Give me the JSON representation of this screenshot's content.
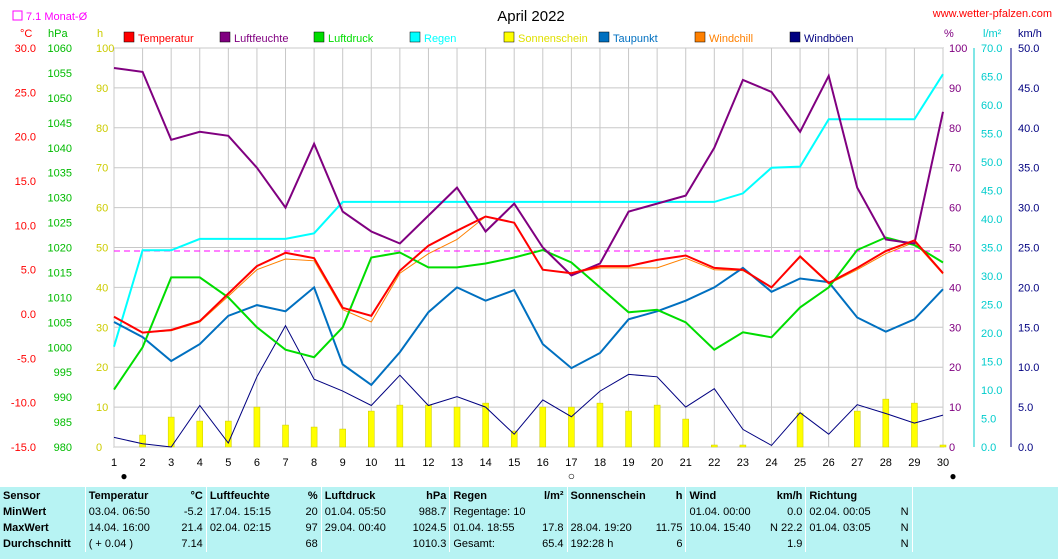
{
  "title": "April 2022",
  "site": "www.wetter-pfalzen.com",
  "monthly_avg_label": "7.1 Monat-Ø",
  "units": {
    "temp": "°C",
    "pressure": "hPa",
    "hours": "h",
    "percent": "%",
    "rain": "l/m²",
    "wind": "km/h"
  },
  "legend": [
    {
      "name": "Temperatur",
      "color": "#ff0000"
    },
    {
      "name": "Luftfeuchte",
      "color": "#800080"
    },
    {
      "name": "Luftdruck",
      "color": "#00dd00"
    },
    {
      "name": "Regen",
      "color": "#00ffff"
    },
    {
      "name": "Sonnenschein",
      "color": "#ffff00"
    },
    {
      "name": "Taupunkt",
      "color": "#0070c0"
    },
    {
      "name": "Windchill",
      "color": "#ff8000"
    },
    {
      "name": "Windböen",
      "color": "#000080"
    }
  ],
  "axes": {
    "temp": {
      "min": -15,
      "max": 30,
      "ticks": [
        "30.0",
        "25.0",
        "20.0",
        "15.0",
        "10.0",
        "5.0",
        "0.0",
        "-5.0",
        "-10.0",
        "-15.0"
      ]
    },
    "pressure": {
      "min": 980,
      "max": 1060,
      "ticks": [
        "1060",
        "1055",
        "1050",
        "1045",
        "1040",
        "1035",
        "1030",
        "1025",
        "1020",
        "1015",
        "1010",
        "1005",
        "1000",
        "995",
        "990",
        "985",
        "980"
      ]
    },
    "hours": {
      "min": 0,
      "max": 100,
      "ticks": [
        "100",
        "90",
        "80",
        "70",
        "60",
        "50",
        "40",
        "30",
        "20",
        "10",
        "0"
      ]
    },
    "percent": {
      "min": 0,
      "max": 100,
      "ticks": [
        "100",
        "90",
        "80",
        "70",
        "60",
        "50",
        "40",
        "30",
        "20",
        "10",
        "0"
      ]
    },
    "rain": {
      "min": 0,
      "max": 70,
      "ticks": [
        "70.0",
        "65.0",
        "60.0",
        "55.0",
        "50.0",
        "45.0",
        "40.0",
        "35.0",
        "30.0",
        "25.0",
        "20.0",
        "15.0",
        "10.0",
        "5.0",
        "0.0"
      ]
    },
    "wind": {
      "min": 0,
      "max": 50,
      "ticks": [
        "50.0",
        "45.0",
        "40.0",
        "35.0",
        "30.0",
        "25.0",
        "20.0",
        "15.0",
        "10.0",
        "5.0",
        "0.0"
      ]
    }
  },
  "chart_data": {
    "type": "line",
    "title": "April 2022",
    "x": [
      1,
      2,
      3,
      4,
      5,
      6,
      7,
      8,
      9,
      10,
      11,
      12,
      13,
      14,
      15,
      16,
      17,
      18,
      19,
      20,
      21,
      22,
      23,
      24,
      25,
      26,
      27,
      28,
      29,
      30
    ],
    "monthly_avg_temp": 7.1,
    "series": [
      {
        "name": "Temperatur",
        "axis": "temp",
        "color": "#ff0000",
        "values": [
          -0.3,
          -2.1,
          -1.8,
          -0.8,
          2.3,
          5.4,
          6.9,
          6.3,
          0.7,
          -0.2,
          4.9,
          7.7,
          9.4,
          11.0,
          10.3,
          5.0,
          4.6,
          5.4,
          5.4,
          6.1,
          6.6,
          5.2,
          5.0,
          3.0,
          6.5,
          3.5,
          5.2,
          7.1,
          8.3,
          4.6
        ]
      },
      {
        "name": "Windchill",
        "axis": "temp",
        "color": "#ff8000",
        "values": [
          -0.3,
          -2.1,
          -1.9,
          -0.9,
          2.0,
          5.0,
          6.2,
          6.0,
          0.5,
          -0.9,
          4.6,
          6.8,
          8.4,
          11.0,
          10.3,
          5.0,
          4.6,
          5.2,
          5.2,
          5.2,
          6.3,
          5.0,
          4.9,
          3.0,
          6.4,
          3.4,
          5.0,
          6.8,
          8.1,
          4.5
        ]
      },
      {
        "name": "Taupunkt",
        "axis": "temp",
        "color": "#0070c0",
        "values": [
          -0.9,
          -2.6,
          -5.3,
          -3.4,
          -0.2,
          1.0,
          0.3,
          3.0,
          -5.7,
          -8.0,
          -4.3,
          0.2,
          3.0,
          1.5,
          2.7,
          -3.4,
          -6.1,
          -4.4,
          -0.6,
          0.3,
          1.5,
          3.0,
          5.2,
          2.5,
          4.0,
          3.6,
          -0.4,
          -2.0,
          -0.6,
          2.8
        ]
      },
      {
        "name": "Luftfeuchte",
        "axis": "percent",
        "color": "#800080",
        "values": [
          95,
          94,
          77,
          79,
          78,
          70,
          60,
          76,
          59,
          54,
          51,
          58,
          65,
          54,
          61,
          50,
          43,
          46,
          59,
          61,
          63,
          75,
          92,
          89,
          79,
          93,
          65,
          52,
          51,
          84
        ]
      },
      {
        "name": "Luftdruck",
        "axis": "pressure",
        "color": "#00dd00",
        "values": [
          991.5,
          1000,
          1014,
          1014,
          1010,
          1004,
          999.5,
          998,
          1004,
          1018,
          1019,
          1016,
          1016,
          1016.8,
          1018,
          1019.5,
          1017,
          1012,
          1007,
          1007.5,
          1005,
          999.5,
          1003,
          1002,
          1008,
          1012,
          1019.5,
          1022,
          1020.5,
          1017
        ]
      },
      {
        "name": "Regen",
        "axis": "rain",
        "color": "#00ffff",
        "values": [
          17.6,
          34.5,
          34.5,
          36.5,
          36.5,
          36.5,
          36.5,
          37.5,
          43,
          43,
          43,
          43,
          43,
          43,
          43,
          43,
          43,
          43,
          43,
          43,
          43,
          43,
          44.5,
          49,
          49.2,
          57.5,
          57.5,
          57.5,
          57.5,
          65.4
        ]
      },
      {
        "name": "Windböen",
        "axis": "wind",
        "color": "#000080",
        "values": [
          1.2,
          0.4,
          0,
          5.2,
          0.5,
          8.8,
          15.2,
          8.5,
          7.0,
          5.2,
          9.0,
          5.2,
          6.3,
          5.0,
          1.6,
          5.9,
          3.8,
          7.0,
          9.1,
          8.8,
          5.0,
          7.3,
          2.2,
          0.2,
          4.3,
          1.6,
          5.3,
          4.2,
          3.0,
          4.0
        ]
      },
      {
        "name": "Sonnenschein",
        "axis": "hours",
        "type": "bar",
        "color": "#ffff00",
        "values": [
          0,
          3,
          7.5,
          6.5,
          6.5,
          10,
          5.5,
          5,
          4.5,
          9,
          10.5,
          10.5,
          10,
          11,
          4,
          10,
          10,
          11,
          9,
          10.5,
          7,
          0.5,
          0.5,
          0,
          8.5,
          0,
          9,
          12,
          11,
          0.5
        ]
      }
    ]
  },
  "moon_markers": [
    {
      "day": 1,
      "symbol": "●"
    },
    {
      "day": 17,
      "symbol": "○"
    },
    {
      "day": 30,
      "symbol": "●"
    }
  ],
  "stats": {
    "headers": {
      "sensor": "Sensor",
      "temp": "Temperatur",
      "temp_unit": "°C",
      "hum": "Luftfeuchte",
      "hum_unit": "%",
      "press": "Luftdruck",
      "press_unit": "hPa",
      "rain": "Regen",
      "rain_unit": "l/m²",
      "sun": "Sonnenschein",
      "sun_unit": "h",
      "wind": "Wind",
      "wind_unit": "km/h",
      "dir": "Richtung"
    },
    "rows": [
      {
        "label": "MinWert",
        "temp_t": "03.04.  06:50",
        "temp_v": "-5.2",
        "hum_t": "17.04.  15:15",
        "hum_v": "20",
        "press_t": "01.04.  05:50",
        "press_v": "988.7",
        "rain_t": "Regentage: 10",
        "rain_v": "",
        "sun_t": "",
        "sun_v": "",
        "wind_t": "01.04.  00:00",
        "wind_v": "0.0",
        "dir_t": "02.04.  00:05",
        "dir_v": "N"
      },
      {
        "label": "MaxWert",
        "temp_t": "14.04.  16:00",
        "temp_v": "21.4",
        "hum_t": "02.04.  02:15",
        "hum_v": "97",
        "press_t": "29.04.  00:40",
        "press_v": "1024.5",
        "rain_t": "01.04.  18:55",
        "rain_v": "17.8",
        "sun_t": "28.04.  19:20",
        "sun_v": "11.75",
        "wind_t": "10.04.  15:40",
        "wind_v": "N 22.2",
        "dir_t": "01.04.  03:05",
        "dir_v": "N"
      },
      {
        "label": "Durchschnitt",
        "temp_t": "( + 0.04 )",
        "temp_v": "7.14",
        "hum_t": "",
        "hum_v": "68",
        "press_t": "",
        "press_v": "1010.3",
        "rain_t": "Gesamt:",
        "rain_v": "65.4",
        "sun_t": "192:28 h",
        "sun_v": "6",
        "wind_t": "",
        "wind_v": "1.9",
        "dir_t": "",
        "dir_v": "N"
      }
    ]
  }
}
